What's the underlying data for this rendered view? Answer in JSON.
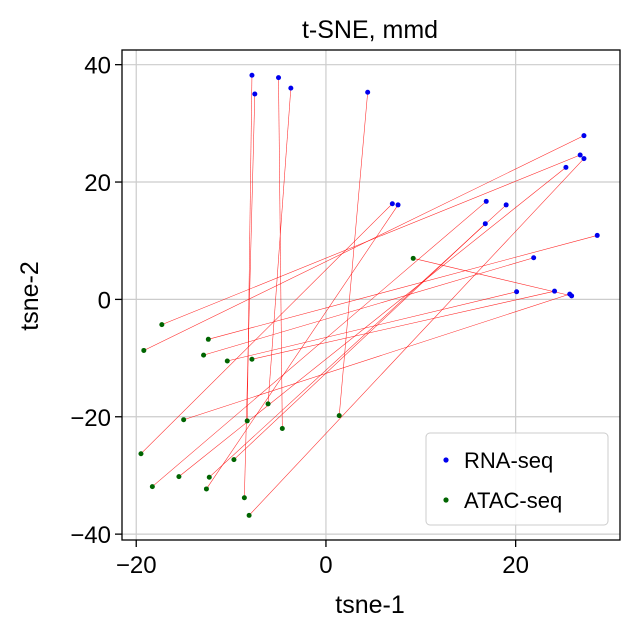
{
  "chart_data": {
    "type": "scatter",
    "title": "t-SNE, mmd",
    "xlabel": "tsne-1",
    "ylabel": "tsne-2",
    "xlim": [
      -21.5,
      31
    ],
    "ylim": [
      -41,
      42.5
    ],
    "xticks": [
      -20,
      0,
      20
    ],
    "yticks": [
      -40,
      -20,
      0,
      20,
      40
    ],
    "xtick_labels": [
      "−20",
      "0",
      "20"
    ],
    "ytick_labels": [
      "−40",
      "−20",
      "0",
      "20",
      "40"
    ],
    "grid": true,
    "legend_position": "bottom-right",
    "series": [
      {
        "name": "RNA-seq",
        "color": "#0000ee",
        "points": [
          [
            -7.8,
            38.2
          ],
          [
            -5.0,
            37.8
          ],
          [
            -3.7,
            36.0
          ],
          [
            -7.5,
            35.0
          ],
          [
            4.4,
            35.3
          ],
          [
            27.2,
            27.9
          ],
          [
            26.8,
            24.6
          ],
          [
            27.2,
            24.0
          ],
          [
            25.3,
            22.5
          ],
          [
            7.0,
            16.3
          ],
          [
            7.6,
            16.1
          ],
          [
            16.9,
            16.7
          ],
          [
            19.0,
            16.1
          ],
          [
            16.8,
            12.9
          ],
          [
            28.6,
            10.9
          ],
          [
            21.9,
            7.1
          ],
          [
            20.1,
            1.3
          ],
          [
            24.1,
            1.4
          ],
          [
            25.7,
            0.9
          ],
          [
            25.9,
            0.6
          ]
        ]
      },
      {
        "name": "ATAC-seq",
        "color": "#006400",
        "points": [
          [
            9.2,
            7.0
          ],
          [
            -17.3,
            -4.3
          ],
          [
            -12.4,
            -6.8
          ],
          [
            -19.2,
            -8.7
          ],
          [
            -12.9,
            -9.5
          ],
          [
            -10.4,
            -10.5
          ],
          [
            -7.8,
            -10.2
          ],
          [
            1.4,
            -19.8
          ],
          [
            -6.1,
            -17.8
          ],
          [
            -15.0,
            -20.5
          ],
          [
            -8.3,
            -20.7
          ],
          [
            -4.6,
            -22.0
          ],
          [
            -19.5,
            -26.3
          ],
          [
            -9.7,
            -27.3
          ],
          [
            -15.5,
            -30.2
          ],
          [
            -12.3,
            -30.3
          ],
          [
            -12.6,
            -32.3
          ],
          [
            -18.3,
            -31.9
          ],
          [
            -8.6,
            -33.8
          ],
          [
            -8.1,
            -36.8
          ]
        ]
      }
    ],
    "links": {
      "color": "#ff0000",
      "pairs": [
        [
          0,
          10
        ],
        [
          1,
          11
        ],
        [
          2,
          8
        ],
        [
          3,
          18
        ],
        [
          4,
          7
        ],
        [
          5,
          3
        ],
        [
          6,
          1
        ],
        [
          7,
          19
        ],
        [
          8,
          14
        ],
        [
          9,
          12
        ],
        [
          10,
          16
        ],
        [
          11,
          17
        ],
        [
          12,
          15
        ],
        [
          13,
          13
        ],
        [
          14,
          2
        ],
        [
          15,
          4
        ],
        [
          16,
          5
        ],
        [
          17,
          6
        ],
        [
          18,
          9
        ],
        [
          19,
          0
        ]
      ]
    }
  }
}
